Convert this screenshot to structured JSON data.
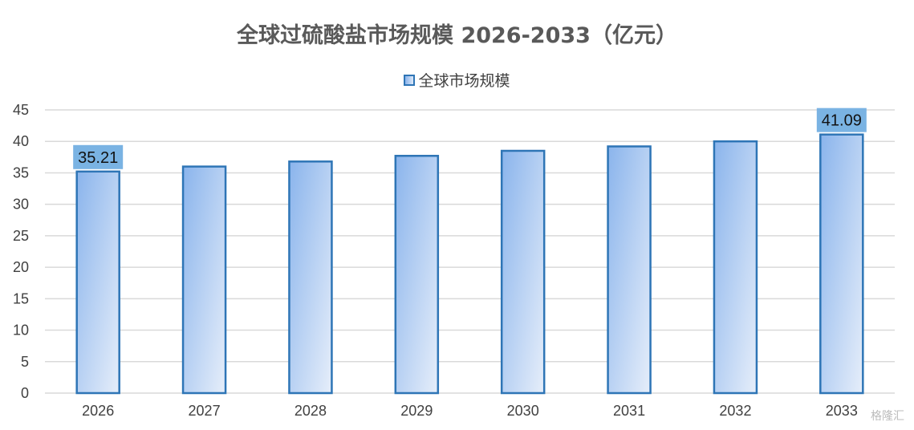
{
  "chart_data": {
    "type": "bar",
    "title": "全球过硫酸盐市场规模 2026-2033（亿元）",
    "categories": [
      "2026",
      "2027",
      "2028",
      "2029",
      "2030",
      "2031",
      "2032",
      "2033"
    ],
    "series": [
      {
        "name": "全球市场规模",
        "values": [
          35.21,
          36.0,
          36.8,
          37.7,
          38.5,
          39.2,
          40.0,
          41.09
        ]
      }
    ],
    "data_labels": [
      {
        "category": "2026",
        "text": "35.21"
      },
      {
        "category": "2033",
        "text": "41.09"
      }
    ],
    "yticks": [
      "0",
      "5",
      "10",
      "15",
      "20",
      "25",
      "30",
      "35",
      "40",
      "45"
    ],
    "ylim": [
      0,
      45
    ],
    "grid": true,
    "legend_position": "top",
    "colors": {
      "bar_border": "#2e75b6",
      "bar_fill_light": "#dde9f8",
      "bar_fill_dark": "#8ab4ec",
      "label_bg": "#7ab3e3",
      "grid": "#d9d9d9"
    }
  },
  "watermark": "格隆汇"
}
